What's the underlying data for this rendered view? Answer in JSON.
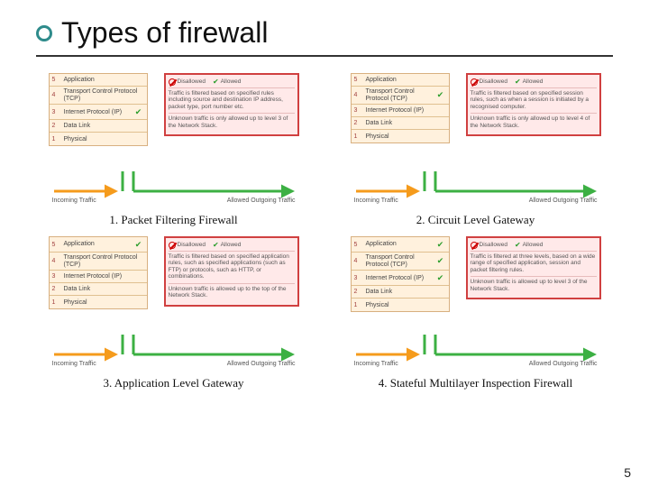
{
  "title": "Types of firewall",
  "page_number": "5",
  "colors": {
    "ring": "#2e8b8b",
    "underline": "#333333",
    "stack_bg": "#fff1dd",
    "stack_border": "#d8b080",
    "rules_bg": "#ffe9e9",
    "rules_border": "#d04040",
    "arrow_orange": "#f59b1c",
    "arrow_green": "#3cb043",
    "disallowed": "#c00000",
    "allowed": "#2a9d2a"
  },
  "layers": [
    {
      "n": "5",
      "label": "Application"
    },
    {
      "n": "4",
      "label": "Transport Control Protocol (TCP)"
    },
    {
      "n": "3",
      "label": "Internet Protocol (IP)"
    },
    {
      "n": "2",
      "label": "Data Link"
    },
    {
      "n": "1",
      "label": "Physical"
    }
  ],
  "labels": {
    "disallowed": "Disallowed",
    "allowed": "Allowed",
    "incoming": "Incoming Traffic",
    "outgoing": "Allowed Outgoing Traffic"
  },
  "panels": [
    {
      "caption": "1. Packet Filtering Firewall",
      "check_at": 2,
      "rules_body": "Traffic is filtered based on specified rules including source and destination IP address, packet type, port number etc.",
      "rules_foot": "Unknown traffic is only allowed up to level 3 of the Network Stack."
    },
    {
      "caption": "2. Circuit Level Gateway",
      "check_at": 1,
      "rules_body": "Traffic is filtered based on specified session rules, such as when a session is initiated by a recognised computer.",
      "rules_foot": "Unknown traffic is only allowed up to level 4 of the Network Stack."
    },
    {
      "caption": "3. Application Level Gateway",
      "check_at": 0,
      "rules_body": "Traffic is filtered based on specified application rules, such as specified applications (such as FTP) or protocols, such as HTTP, or combinations.",
      "rules_foot": "Unknown traffic is allowed up to the top of the Network Stack."
    },
    {
      "caption": "4. Stateful Multilayer Inspection Firewall",
      "check_at": -1,
      "rules_body": "Traffic is filtered at three levels, based on a wide range of specified application, session and packet filtering rules.",
      "rules_foot": "Unknown traffic is allowed up to level 3 of the Network Stack."
    }
  ]
}
